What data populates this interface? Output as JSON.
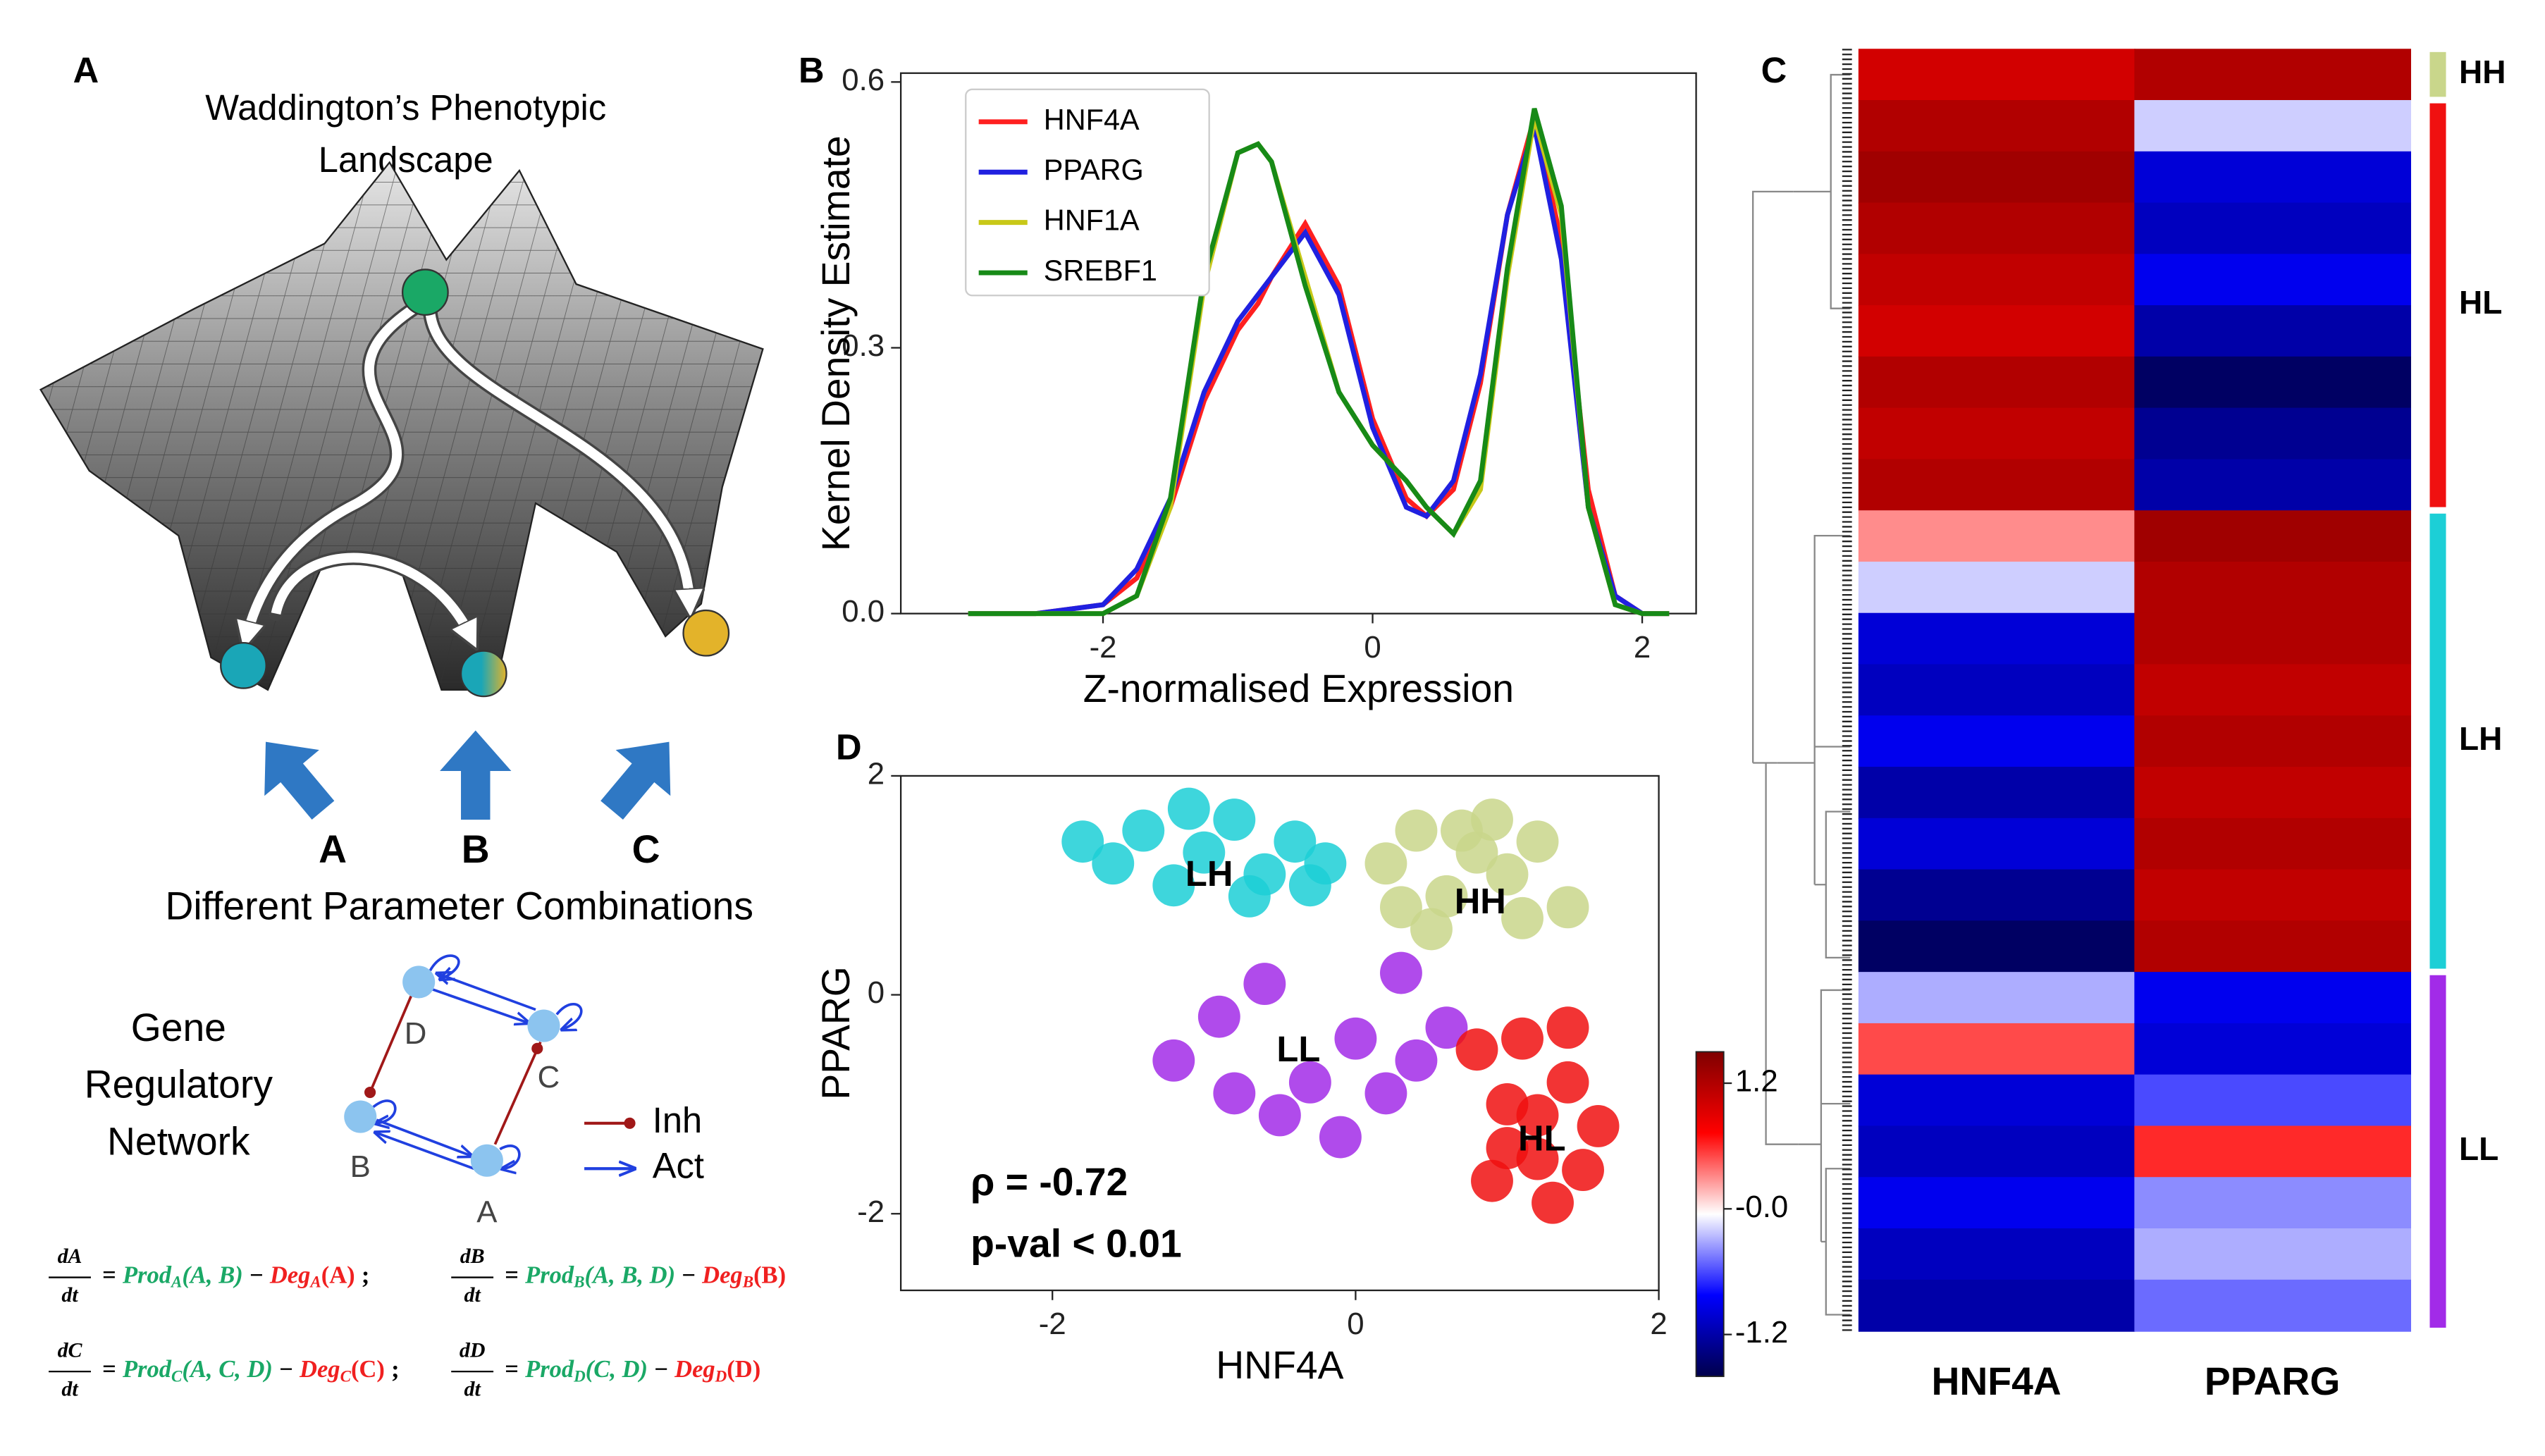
{
  "panels": {
    "a": "A",
    "b": "B",
    "c": "C",
    "d": "D"
  },
  "landscape": {
    "title_lines": [
      "Waddington’s Phenotypic",
      "Landscape"
    ],
    "arrow_labels": [
      "A",
      "B",
      "C"
    ],
    "caption": "Different Parameter Combinations"
  },
  "network": {
    "title_lines": [
      "Gene",
      "Regulatory",
      "Network"
    ],
    "nodes": [
      "A",
      "B",
      "C",
      "D"
    ],
    "legend": {
      "inhibition": "Inh",
      "activation": "Act"
    }
  },
  "equations": {
    "equals": "=",
    "minus": "−",
    "separator": ";",
    "terms": [
      {
        "num": "dA",
        "den": "dt",
        "prod": "Prod",
        "prod_sub": "A",
        "prod_args": "(A, B)",
        "deg": "Deg",
        "deg_sub": "A",
        "deg_args": "(A)"
      },
      {
        "num": "dB",
        "den": "dt",
        "prod": "Prod",
        "prod_sub": "B",
        "prod_args": "(A, B, D)",
        "deg": "Deg",
        "deg_sub": "B",
        "deg_args": "(B)"
      },
      {
        "num": "dC",
        "den": "dt",
        "prod": "Prod",
        "prod_sub": "C",
        "prod_args": "(A, C, D)",
        "deg": "Deg",
        "deg_sub": "C",
        "deg_args": "(C)"
      },
      {
        "num": "dD",
        "den": "dt",
        "prod": "Prod",
        "prod_sub": "D",
        "prod_args": "(C, D)",
        "deg": "Deg",
        "deg_sub": "D",
        "deg_args": "(D)"
      }
    ]
  },
  "chart_data": [
    {
      "type": "line",
      "xlabel": "Z-normalised Expression",
      "ylabel": "Kernel Density Estimate",
      "x": [
        -3,
        -2.5,
        -2,
        -1.75,
        -1.5,
        -1.25,
        -1,
        -0.85,
        -0.75,
        -0.5,
        -0.25,
        0,
        0.25,
        0.4,
        0.6,
        0.8,
        1,
        1.2,
        1.4,
        1.6,
        1.8,
        2,
        2.2
      ],
      "series": [
        {
          "name": "HNF4A",
          "color": "#ff2020",
          "values": [
            0,
            0,
            0.01,
            0.04,
            0.12,
            0.24,
            0.32,
            0.35,
            0.38,
            0.44,
            0.37,
            0.22,
            0.13,
            0.11,
            0.14,
            0.26,
            0.45,
            0.56,
            0.42,
            0.14,
            0.02,
            0,
            0
          ]
        },
        {
          "name": "PPARG",
          "color": "#2020e0",
          "values": [
            0,
            0,
            0.01,
            0.05,
            0.13,
            0.25,
            0.33,
            0.36,
            0.38,
            0.43,
            0.36,
            0.21,
            0.12,
            0.11,
            0.15,
            0.27,
            0.45,
            0.55,
            0.4,
            0.12,
            0.02,
            0,
            0
          ]
        },
        {
          "name": "HNF1A",
          "color": "#c8c818",
          "values": [
            0,
            0,
            0,
            0.02,
            0.12,
            0.37,
            0.52,
            0.53,
            0.51,
            0.38,
            0.25,
            0.19,
            0.15,
            0.12,
            0.09,
            0.14,
            0.38,
            0.56,
            0.45,
            0.12,
            0.01,
            0,
            0
          ]
        },
        {
          "name": "SREBF1",
          "color": "#178a17",
          "values": [
            0,
            0,
            0,
            0.02,
            0.13,
            0.38,
            0.52,
            0.53,
            0.51,
            0.37,
            0.25,
            0.19,
            0.15,
            0.12,
            0.09,
            0.15,
            0.39,
            0.57,
            0.46,
            0.12,
            0.01,
            0,
            0
          ]
        }
      ],
      "xlim": [
        -3.5,
        2.4
      ],
      "xticks": [
        -2,
        0,
        2
      ],
      "ylim": [
        0,
        0.61
      ],
      "yticks": [
        {
          "value": 0,
          "label": "0.0"
        },
        0.3,
        0.6
      ],
      "legend": "upper left"
    },
    {
      "type": "scatter",
      "xlabel": "HNF4A",
      "ylabel": "PPARG",
      "annotations": [
        "ρ = -0.72",
        "p-val < 0.01"
      ],
      "series": [
        {
          "name": "LH",
          "color": "#1ccfd6",
          "x": [
            -1.6,
            -1.4,
            -1.2,
            -1.0,
            -0.8,
            -0.6,
            -0.4,
            -0.2,
            -1.1,
            -0.7,
            -1.8,
            -0.3
          ],
          "y": [
            1.2,
            1.5,
            1.0,
            1.3,
            1.6,
            1.1,
            1.4,
            1.2,
            1.7,
            0.9,
            1.4,
            1.0
          ]
        },
        {
          "name": "HH",
          "color": "#c9d68b",
          "x": [
            0.2,
            0.4,
            0.6,
            0.8,
            1.0,
            1.2,
            1.4,
            0.5,
            0.9,
            1.1,
            0.3,
            0.7
          ],
          "y": [
            1.2,
            1.5,
            0.9,
            1.3,
            1.1,
            1.4,
            0.8,
            0.6,
            1.6,
            0.7,
            0.8,
            1.5
          ]
        },
        {
          "name": "LL",
          "color": "#a22be8",
          "x": [
            -1.2,
            -0.9,
            -0.6,
            -0.3,
            0.0,
            0.3,
            0.6,
            -0.5,
            -0.1,
            0.2,
            -0.8,
            0.4
          ],
          "y": [
            -0.6,
            -0.2,
            0.1,
            -0.8,
            -0.4,
            0.2,
            -0.3,
            -1.1,
            -1.3,
            -0.9,
            -0.9,
            -0.6
          ]
        },
        {
          "name": "HL",
          "color": "#f01010",
          "x": [
            0.8,
            1.0,
            1.2,
            1.4,
            1.6,
            0.9,
            1.1,
            1.3,
            1.5,
            1.2,
            1.0,
            1.4
          ],
          "y": [
            -0.5,
            -1.0,
            -1.5,
            -0.8,
            -1.2,
            -1.7,
            -0.4,
            -1.9,
            -1.6,
            -1.1,
            -1.4,
            -0.3
          ]
        }
      ],
      "xlim": [
        -3,
        2
      ],
      "xticks": [
        -2,
        0,
        2
      ],
      "ylim": [
        -2.7,
        2
      ],
      "yticks": [
        -2,
        0,
        2
      ]
    },
    {
      "type": "heatmap",
      "series": [
        {
          "name": "HNF4A",
          "values": [
            1.0,
            1.2,
            1.3,
            1.2,
            1.1,
            1.0,
            1.2,
            1.1,
            1.2,
            0.3,
            -0.2,
            -1.0,
            -1.1,
            -0.9,
            -1.2,
            -1.0,
            -1.3,
            -1.5,
            -0.3,
            0.5,
            -1.0,
            -1.1,
            -0.9,
            -1.1,
            -1.2
          ]
        },
        {
          "name": "PPARG",
          "values": [
            1.2,
            -0.2,
            -1.0,
            -1.1,
            -0.9,
            -1.2,
            -1.5,
            -1.3,
            -1.2,
            1.3,
            1.2,
            1.2,
            1.1,
            1.2,
            1.1,
            1.2,
            1.1,
            1.2,
            -0.9,
            -1.0,
            -0.6,
            0.6,
            -0.4,
            -0.3,
            -0.5
          ]
        }
      ],
      "row_groups": [
        "HH",
        "HL",
        "HL",
        "HL",
        "HL",
        "HL",
        "HL",
        "HL",
        "HL",
        "LH",
        "LH",
        "LH",
        "LH",
        "LH",
        "LH",
        "LH",
        "LH",
        "LH",
        "LL",
        "LL",
        "LL",
        "LL",
        "LL",
        "LL",
        "LL"
      ],
      "group_colors": {
        "HH": "#c9d68b",
        "HL": "#f01010",
        "LH": "#1ccfd6",
        "LL": "#a22be8"
      },
      "clim": [
        -1.6,
        1.5
      ],
      "cticks": [
        1.2,
        {
          "value": 0,
          "label": "-0.0"
        },
        -1.2
      ]
    }
  ]
}
